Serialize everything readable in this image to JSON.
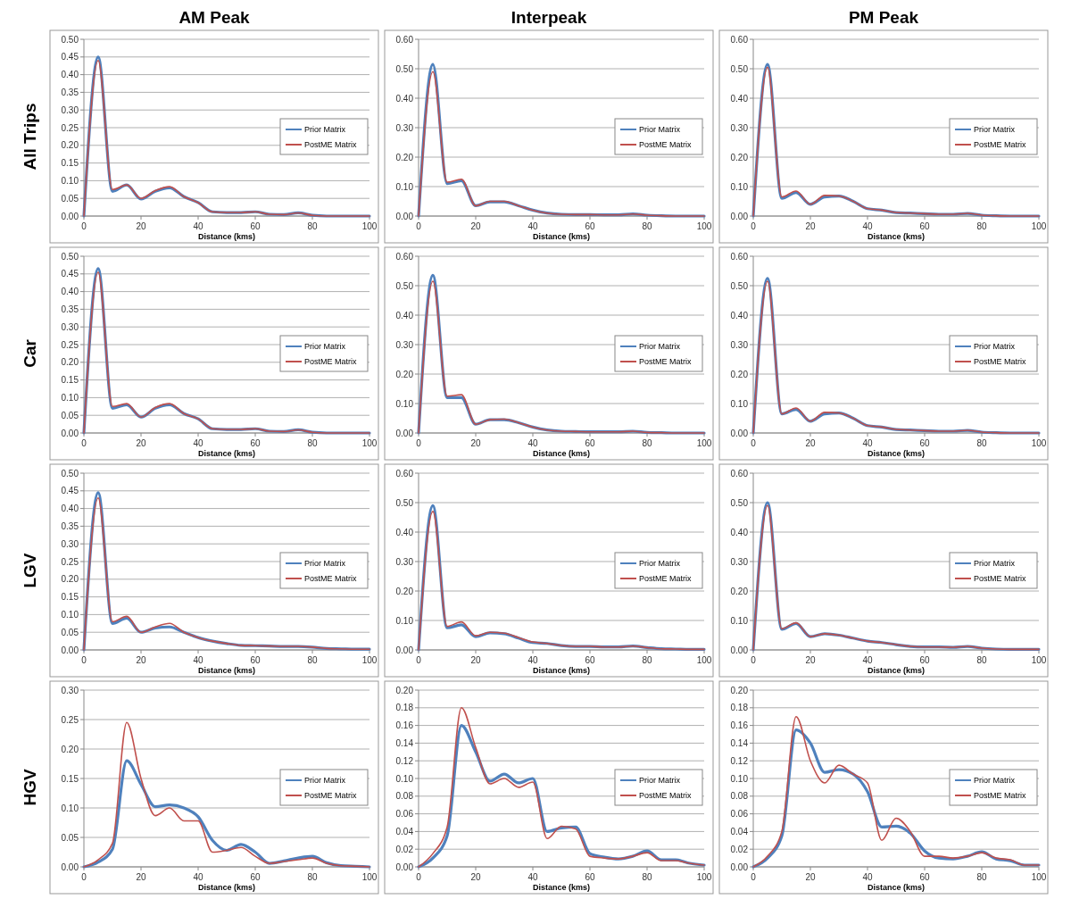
{
  "chart_data": [
    {
      "type": "line",
      "title": "AM Peak",
      "ylabel": "All Trips",
      "xlabel": "Distance (kms)",
      "x": [
        0,
        5,
        10,
        15,
        20,
        25,
        30,
        35,
        40,
        45,
        50,
        55,
        60,
        65,
        70,
        75,
        80,
        85,
        90,
        95,
        100
      ],
      "xlim": [
        0,
        100
      ],
      "xticks": [
        0,
        20,
        40,
        60,
        80,
        100
      ],
      "ylim": [
        0,
        0.5
      ],
      "yticks": [
        {
          "value": 0,
          "label": "0.00"
        },
        {
          "value": 0.05,
          "label": "0.05"
        },
        {
          "value": 0.1,
          "label": "0.10"
        },
        {
          "value": 0.15,
          "label": "0.15"
        },
        {
          "value": 0.2,
          "label": "0.20"
        },
        {
          "value": 0.25,
          "label": "0.25"
        },
        {
          "value": 0.3,
          "label": "0.30"
        },
        {
          "value": 0.35,
          "label": "0.35"
        },
        {
          "value": 0.4,
          "label": "0.40"
        },
        {
          "value": 0.45,
          "label": "0.45"
        },
        {
          "value": 0.5,
          "label": "0.50"
        }
      ],
      "grid": "y",
      "legend": "right",
      "series": [
        {
          "name": "Prior Matrix",
          "color": "#4f81bd",
          "values": [
            0,
            0.45,
            0.07,
            0.088,
            0.048,
            0.07,
            0.08,
            0.055,
            0.038,
            0.012,
            0.01,
            0.01,
            0.012,
            0.005,
            0.004,
            0.009,
            0.002,
            0,
            0,
            0,
            0
          ]
        },
        {
          "name": "PostME Matrix",
          "color": "#c0504d",
          "values": [
            0,
            0.44,
            0.075,
            0.088,
            0.05,
            0.072,
            0.083,
            0.055,
            0.038,
            0.012,
            0.01,
            0.01,
            0.012,
            0.005,
            0.004,
            0.009,
            0.002,
            0,
            0,
            0,
            0
          ]
        }
      ]
    },
    {
      "type": "line",
      "title": "Interpeak",
      "xlabel": "Distance (kms)",
      "x": [
        0,
        5,
        10,
        15,
        20,
        25,
        30,
        35,
        40,
        45,
        50,
        55,
        60,
        65,
        70,
        75,
        80,
        85,
        90,
        95,
        100
      ],
      "xlim": [
        0,
        100
      ],
      "xticks": [
        0,
        20,
        40,
        60,
        80,
        100
      ],
      "ylim": [
        0,
        0.6
      ],
      "yticks": [
        {
          "value": 0,
          "label": "0.00"
        },
        {
          "value": 0.1,
          "label": "0.10"
        },
        {
          "value": 0.2,
          "label": "0.20"
        },
        {
          "value": 0.3,
          "label": "0.30"
        },
        {
          "value": 0.4,
          "label": "0.40"
        },
        {
          "value": 0.5,
          "label": "0.50"
        },
        {
          "value": 0.6,
          "label": "0.60"
        }
      ],
      "grid": "y",
      "legend": "right",
      "series": [
        {
          "name": "Prior Matrix",
          "color": "#4f81bd",
          "values": [
            0,
            0.515,
            0.11,
            0.12,
            0.035,
            0.048,
            0.048,
            0.035,
            0.02,
            0.01,
            0.006,
            0.005,
            0.005,
            0.004,
            0.004,
            0.007,
            0.003,
            0.001,
            0,
            0,
            0
          ]
        },
        {
          "name": "PostME Matrix",
          "color": "#c0504d",
          "values": [
            0,
            0.49,
            0.115,
            0.125,
            0.035,
            0.05,
            0.05,
            0.035,
            0.02,
            0.01,
            0.006,
            0.005,
            0.005,
            0.004,
            0.004,
            0.007,
            0.003,
            0.001,
            0,
            0,
            0
          ]
        }
      ]
    },
    {
      "type": "line",
      "title": "PM Peak",
      "xlabel": "Distance (kms)",
      "x": [
        0,
        5,
        10,
        15,
        20,
        25,
        30,
        35,
        40,
        45,
        50,
        55,
        60,
        65,
        70,
        75,
        80,
        85,
        90,
        95,
        100
      ],
      "xlim": [
        0,
        100
      ],
      "xticks": [
        0,
        20,
        40,
        60,
        80,
        100
      ],
      "ylim": [
        0,
        0.6
      ],
      "yticks": [
        {
          "value": 0,
          "label": "0.00"
        },
        {
          "value": 0.1,
          "label": "0.10"
        },
        {
          "value": 0.2,
          "label": "0.20"
        },
        {
          "value": 0.3,
          "label": "0.30"
        },
        {
          "value": 0.4,
          "label": "0.40"
        },
        {
          "value": 0.5,
          "label": "0.50"
        },
        {
          "value": 0.6,
          "label": "0.60"
        }
      ],
      "grid": "y",
      "legend": "right",
      "series": [
        {
          "name": "Prior Matrix",
          "color": "#4f81bd",
          "values": [
            0,
            0.515,
            0.06,
            0.08,
            0.04,
            0.065,
            0.068,
            0.05,
            0.025,
            0.02,
            0.012,
            0.01,
            0.008,
            0.006,
            0.006,
            0.009,
            0.003,
            0.001,
            0,
            0,
            0
          ]
        },
        {
          "name": "PostME Matrix",
          "color": "#c0504d",
          "values": [
            0,
            0.505,
            0.065,
            0.085,
            0.04,
            0.07,
            0.068,
            0.05,
            0.025,
            0.02,
            0.012,
            0.01,
            0.008,
            0.006,
            0.006,
            0.009,
            0.003,
            0.001,
            0,
            0,
            0
          ]
        }
      ]
    },
    {
      "type": "line",
      "ylabel": "Car",
      "xlabel": "Distance (kms)",
      "x": [
        0,
        5,
        10,
        15,
        20,
        25,
        30,
        35,
        40,
        45,
        50,
        55,
        60,
        65,
        70,
        75,
        80,
        85,
        90,
        95,
        100
      ],
      "xlim": [
        0,
        100
      ],
      "xticks": [
        0,
        20,
        40,
        60,
        80,
        100
      ],
      "ylim": [
        0,
        0.5
      ],
      "yticks": [
        {
          "value": 0,
          "label": "0.00"
        },
        {
          "value": 0.05,
          "label": "0.05"
        },
        {
          "value": 0.1,
          "label": "0.10"
        },
        {
          "value": 0.15,
          "label": "0.15"
        },
        {
          "value": 0.2,
          "label": "0.20"
        },
        {
          "value": 0.25,
          "label": "0.25"
        },
        {
          "value": 0.3,
          "label": "0.30"
        },
        {
          "value": 0.35,
          "label": "0.35"
        },
        {
          "value": 0.4,
          "label": "0.40"
        },
        {
          "value": 0.45,
          "label": "0.45"
        },
        {
          "value": 0.5,
          "label": "0.50"
        }
      ],
      "grid": "y",
      "legend": "right",
      "series": [
        {
          "name": "Prior Matrix",
          "color": "#4f81bd",
          "values": [
            0,
            0.465,
            0.07,
            0.08,
            0.045,
            0.07,
            0.08,
            0.055,
            0.04,
            0.012,
            0.01,
            0.01,
            0.012,
            0.005,
            0.004,
            0.009,
            0.002,
            0,
            0,
            0,
            0
          ]
        },
        {
          "name": "PostME Matrix",
          "color": "#c0504d",
          "values": [
            0,
            0.455,
            0.075,
            0.083,
            0.045,
            0.072,
            0.083,
            0.055,
            0.04,
            0.012,
            0.01,
            0.01,
            0.012,
            0.005,
            0.004,
            0.009,
            0.002,
            0,
            0,
            0,
            0
          ]
        }
      ]
    },
    {
      "type": "line",
      "xlabel": "Distance (kms)",
      "x": [
        0,
        5,
        10,
        15,
        20,
        25,
        30,
        35,
        40,
        45,
        50,
        55,
        60,
        65,
        70,
        75,
        80,
        85,
        90,
        95,
        100
      ],
      "xlim": [
        0,
        100
      ],
      "xticks": [
        0,
        20,
        40,
        60,
        80,
        100
      ],
      "ylim": [
        0,
        0.6
      ],
      "yticks": [
        {
          "value": 0,
          "label": "0.00"
        },
        {
          "value": 0.1,
          "label": "0.10"
        },
        {
          "value": 0.2,
          "label": "0.20"
        },
        {
          "value": 0.3,
          "label": "0.30"
        },
        {
          "value": 0.4,
          "label": "0.40"
        },
        {
          "value": 0.5,
          "label": "0.50"
        },
        {
          "value": 0.6,
          "label": "0.60"
        }
      ],
      "grid": "y",
      "legend": "right",
      "series": [
        {
          "name": "Prior Matrix",
          "color": "#4f81bd",
          "values": [
            0,
            0.535,
            0.12,
            0.12,
            0.03,
            0.045,
            0.045,
            0.035,
            0.02,
            0.01,
            0.006,
            0.005,
            0.004,
            0.004,
            0.004,
            0.006,
            0.002,
            0.001,
            0,
            0,
            0
          ]
        },
        {
          "name": "PostME Matrix",
          "color": "#c0504d",
          "values": [
            0,
            0.515,
            0.125,
            0.13,
            0.03,
            0.045,
            0.047,
            0.035,
            0.02,
            0.01,
            0.006,
            0.005,
            0.004,
            0.004,
            0.004,
            0.006,
            0.002,
            0.001,
            0,
            0,
            0
          ]
        }
      ]
    },
    {
      "type": "line",
      "xlabel": "Distance (kms)",
      "x": [
        0,
        5,
        10,
        15,
        20,
        25,
        30,
        35,
        40,
        45,
        50,
        55,
        60,
        65,
        70,
        75,
        80,
        85,
        90,
        95,
        100
      ],
      "xlim": [
        0,
        100
      ],
      "xticks": [
        0,
        20,
        40,
        60,
        80,
        100
      ],
      "ylim": [
        0,
        0.6
      ],
      "yticks": [
        {
          "value": 0,
          "label": "0.00"
        },
        {
          "value": 0.1,
          "label": "0.10"
        },
        {
          "value": 0.2,
          "label": "0.20"
        },
        {
          "value": 0.3,
          "label": "0.30"
        },
        {
          "value": 0.4,
          "label": "0.40"
        },
        {
          "value": 0.5,
          "label": "0.50"
        },
        {
          "value": 0.6,
          "label": "0.60"
        }
      ],
      "grid": "y",
      "legend": "right",
      "series": [
        {
          "name": "Prior Matrix",
          "color": "#4f81bd",
          "values": [
            0,
            0.525,
            0.065,
            0.08,
            0.04,
            0.065,
            0.068,
            0.05,
            0.025,
            0.02,
            0.012,
            0.01,
            0.008,
            0.006,
            0.006,
            0.009,
            0.003,
            0.001,
            0,
            0,
            0
          ]
        },
        {
          "name": "PostME Matrix",
          "color": "#c0504d",
          "values": [
            0,
            0.515,
            0.065,
            0.085,
            0.04,
            0.07,
            0.068,
            0.05,
            0.025,
            0.02,
            0.012,
            0.01,
            0.008,
            0.006,
            0.006,
            0.009,
            0.003,
            0.001,
            0,
            0,
            0
          ]
        }
      ]
    },
    {
      "type": "line",
      "ylabel": "LGV",
      "xlabel": "Distance (kms)",
      "x": [
        0,
        5,
        10,
        15,
        20,
        25,
        30,
        35,
        40,
        45,
        50,
        55,
        60,
        65,
        70,
        75,
        80,
        85,
        90,
        95,
        100
      ],
      "xlim": [
        0,
        100
      ],
      "xticks": [
        0,
        20,
        40,
        60,
        80,
        100
      ],
      "ylim": [
        0,
        0.5
      ],
      "yticks": [
        {
          "value": 0,
          "label": "0.00"
        },
        {
          "value": 0.05,
          "label": "0.05"
        },
        {
          "value": 0.1,
          "label": "0.10"
        },
        {
          "value": 0.15,
          "label": "0.15"
        },
        {
          "value": 0.2,
          "label": "0.20"
        },
        {
          "value": 0.25,
          "label": "0.25"
        },
        {
          "value": 0.3,
          "label": "0.30"
        },
        {
          "value": 0.35,
          "label": "0.35"
        },
        {
          "value": 0.4,
          "label": "0.40"
        },
        {
          "value": 0.45,
          "label": "0.45"
        },
        {
          "value": 0.5,
          "label": "0.50"
        }
      ],
      "grid": "y",
      "legend": "right",
      "series": [
        {
          "name": "Prior Matrix",
          "color": "#4f81bd",
          "values": [
            0,
            0.445,
            0.075,
            0.09,
            0.05,
            0.062,
            0.065,
            0.05,
            0.035,
            0.025,
            0.018,
            0.013,
            0.012,
            0.011,
            0.01,
            0.01,
            0.008,
            0.004,
            0.003,
            0.002,
            0.002
          ]
        },
        {
          "name": "PostME Matrix",
          "color": "#c0504d",
          "values": [
            0,
            0.43,
            0.08,
            0.095,
            0.05,
            0.065,
            0.075,
            0.05,
            0.035,
            0.025,
            0.018,
            0.013,
            0.012,
            0.011,
            0.01,
            0.01,
            0.008,
            0.004,
            0.003,
            0.002,
            0.002
          ]
        }
      ]
    },
    {
      "type": "line",
      "xlabel": "Distance (kms)",
      "x": [
        0,
        5,
        10,
        15,
        20,
        25,
        30,
        35,
        40,
        45,
        50,
        55,
        60,
        65,
        70,
        75,
        80,
        85,
        90,
        95,
        100
      ],
      "xlim": [
        0,
        100
      ],
      "xticks": [
        0,
        20,
        40,
        60,
        80,
        100
      ],
      "ylim": [
        0,
        0.6
      ],
      "yticks": [
        {
          "value": 0,
          "label": "0.00"
        },
        {
          "value": 0.1,
          "label": "0.10"
        },
        {
          "value": 0.2,
          "label": "0.20"
        },
        {
          "value": 0.3,
          "label": "0.30"
        },
        {
          "value": 0.4,
          "label": "0.40"
        },
        {
          "value": 0.5,
          "label": "0.50"
        },
        {
          "value": 0.6,
          "label": "0.60"
        }
      ],
      "grid": "y",
      "legend": "right",
      "series": [
        {
          "name": "Prior Matrix",
          "color": "#4f81bd",
          "values": [
            0,
            0.49,
            0.075,
            0.085,
            0.045,
            0.058,
            0.055,
            0.04,
            0.025,
            0.022,
            0.015,
            0.012,
            0.012,
            0.01,
            0.01,
            0.013,
            0.008,
            0.004,
            0.003,
            0.002,
            0.002
          ]
        },
        {
          "name": "PostME Matrix",
          "color": "#c0504d",
          "values": [
            0,
            0.47,
            0.08,
            0.095,
            0.048,
            0.06,
            0.057,
            0.042,
            0.027,
            0.022,
            0.015,
            0.012,
            0.012,
            0.01,
            0.01,
            0.013,
            0.008,
            0.004,
            0.003,
            0.002,
            0.002
          ]
        }
      ]
    },
    {
      "type": "line",
      "xlabel": "Distance (kms)",
      "x": [
        0,
        5,
        10,
        15,
        20,
        25,
        30,
        35,
        40,
        45,
        50,
        55,
        60,
        65,
        70,
        75,
        80,
        85,
        90,
        95,
        100
      ],
      "xlim": [
        0,
        100
      ],
      "xticks": [
        0,
        20,
        40,
        60,
        80,
        100
      ],
      "ylim": [
        0,
        0.6
      ],
      "yticks": [
        {
          "value": 0,
          "label": "0.00"
        },
        {
          "value": 0.1,
          "label": "0.10"
        },
        {
          "value": 0.2,
          "label": "0.20"
        },
        {
          "value": 0.3,
          "label": "0.30"
        },
        {
          "value": 0.4,
          "label": "0.40"
        },
        {
          "value": 0.5,
          "label": "0.50"
        },
        {
          "value": 0.6,
          "label": "0.60"
        }
      ],
      "grid": "y",
      "legend": "right",
      "series": [
        {
          "name": "Prior Matrix",
          "color": "#4f81bd",
          "values": [
            0,
            0.5,
            0.07,
            0.09,
            0.045,
            0.055,
            0.05,
            0.04,
            0.03,
            0.025,
            0.018,
            0.012,
            0.01,
            0.01,
            0.009,
            0.012,
            0.006,
            0.003,
            0.002,
            0.002,
            0.002
          ]
        },
        {
          "name": "PostME Matrix",
          "color": "#c0504d",
          "values": [
            0,
            0.49,
            0.072,
            0.092,
            0.045,
            0.055,
            0.05,
            0.04,
            0.03,
            0.025,
            0.018,
            0.012,
            0.01,
            0.01,
            0.009,
            0.012,
            0.006,
            0.003,
            0.002,
            0.002,
            0.002
          ]
        }
      ]
    },
    {
      "type": "line",
      "ylabel": "HGV",
      "xlabel": "Distance (kms)",
      "x": [
        0,
        5,
        10,
        15,
        20,
        25,
        30,
        35,
        40,
        45,
        50,
        55,
        60,
        65,
        70,
        75,
        80,
        85,
        90,
        95,
        100
      ],
      "xlim": [
        0,
        100
      ],
      "xticks": [
        0,
        20,
        40,
        60,
        80,
        100
      ],
      "ylim": [
        0,
        0.3
      ],
      "yticks": [
        {
          "value": 0,
          "label": "0.00"
        },
        {
          "value": 0.05,
          "label": "0.05"
        },
        {
          "value": 0.1,
          "label": "0.10"
        },
        {
          "value": 0.15,
          "label": "0.15"
        },
        {
          "value": 0.2,
          "label": "0.20"
        },
        {
          "value": 0.25,
          "label": "0.25"
        },
        {
          "value": 0.3,
          "label": "0.30"
        }
      ],
      "grid": "y",
      "legend": "right",
      "series": [
        {
          "name": "Prior Matrix",
          "color": "#4f81bd",
          "values": [
            0,
            0.008,
            0.03,
            0.18,
            0.14,
            0.102,
            0.105,
            0.1,
            0.085,
            0.045,
            0.028,
            0.038,
            0.025,
            0.006,
            0.01,
            0.015,
            0.018,
            0.007,
            0.002,
            0.001,
            0
          ]
        },
        {
          "name": "PostME Matrix",
          "color": "#c0504d",
          "values": [
            0,
            0.012,
            0.04,
            0.245,
            0.15,
            0.087,
            0.1,
            0.078,
            0.078,
            0.025,
            0.028,
            0.033,
            0.018,
            0.006,
            0.009,
            0.012,
            0.015,
            0.006,
            0.002,
            0.001,
            0
          ]
        }
      ]
    },
    {
      "type": "line",
      "xlabel": "Distance (kms)",
      "x": [
        0,
        5,
        10,
        15,
        20,
        25,
        30,
        35,
        40,
        45,
        50,
        55,
        60,
        65,
        70,
        75,
        80,
        85,
        90,
        95,
        100
      ],
      "xlim": [
        0,
        100
      ],
      "xticks": [
        0,
        20,
        40,
        60,
        80,
        100
      ],
      "ylim": [
        0,
        0.2
      ],
      "yticks": [
        {
          "value": 0,
          "label": "0.00"
        },
        {
          "value": 0.02,
          "label": "0.02"
        },
        {
          "value": 0.04,
          "label": "0.04"
        },
        {
          "value": 0.06,
          "label": "0.06"
        },
        {
          "value": 0.08,
          "label": "0.08"
        },
        {
          "value": 0.1,
          "label": "0.10"
        },
        {
          "value": 0.12,
          "label": "0.12"
        },
        {
          "value": 0.14,
          "label": "0.14"
        },
        {
          "value": 0.16,
          "label": "0.16"
        },
        {
          "value": 0.18,
          "label": "0.18"
        },
        {
          "value": 0.2,
          "label": "0.20"
        }
      ],
      "grid": "y",
      "legend": "right",
      "series": [
        {
          "name": "Prior Matrix",
          "color": "#4f81bd",
          "values": [
            0,
            0.01,
            0.035,
            0.16,
            0.13,
            0.097,
            0.105,
            0.095,
            0.1,
            0.04,
            0.044,
            0.045,
            0.015,
            0.011,
            0.009,
            0.012,
            0.018,
            0.008,
            0.008,
            0.004,
            0.002
          ]
        },
        {
          "name": "PostME Matrix",
          "color": "#c0504d",
          "values": [
            0,
            0.015,
            0.045,
            0.18,
            0.135,
            0.094,
            0.1,
            0.09,
            0.096,
            0.032,
            0.046,
            0.043,
            0.012,
            0.01,
            0.009,
            0.012,
            0.016,
            0.007,
            0.007,
            0.004,
            0.002
          ]
        }
      ]
    },
    {
      "type": "line",
      "xlabel": "Distance (kms)",
      "x": [
        0,
        5,
        10,
        15,
        20,
        25,
        30,
        35,
        40,
        45,
        50,
        55,
        60,
        65,
        70,
        75,
        80,
        85,
        90,
        95,
        100
      ],
      "xlim": [
        0,
        100
      ],
      "xticks": [
        0,
        20,
        40,
        60,
        80,
        100
      ],
      "ylim": [
        0,
        0.2
      ],
      "yticks": [
        {
          "value": 0,
          "label": "0.00"
        },
        {
          "value": 0.02,
          "label": "0.02"
        },
        {
          "value": 0.04,
          "label": "0.04"
        },
        {
          "value": 0.06,
          "label": "0.06"
        },
        {
          "value": 0.08,
          "label": "0.08"
        },
        {
          "value": 0.1,
          "label": "0.10"
        },
        {
          "value": 0.12,
          "label": "0.12"
        },
        {
          "value": 0.14,
          "label": "0.14"
        },
        {
          "value": 0.16,
          "label": "0.16"
        },
        {
          "value": 0.18,
          "label": "0.18"
        },
        {
          "value": 0.2,
          "label": "0.20"
        }
      ],
      "grid": "y",
      "legend": "right",
      "series": [
        {
          "name": "Prior Matrix",
          "color": "#4f81bd",
          "values": [
            0,
            0.01,
            0.035,
            0.155,
            0.14,
            0.107,
            0.11,
            0.105,
            0.085,
            0.045,
            0.046,
            0.038,
            0.018,
            0.01,
            0.009,
            0.012,
            0.017,
            0.009,
            0.007,
            0.002,
            0.002
          ]
        },
        {
          "name": "PostME Matrix",
          "color": "#c0504d",
          "values": [
            0,
            0.012,
            0.04,
            0.17,
            0.12,
            0.095,
            0.115,
            0.105,
            0.095,
            0.03,
            0.055,
            0.04,
            0.012,
            0.012,
            0.01,
            0.012,
            0.016,
            0.01,
            0.008,
            0.002,
            0.002
          ]
        }
      ]
    }
  ]
}
